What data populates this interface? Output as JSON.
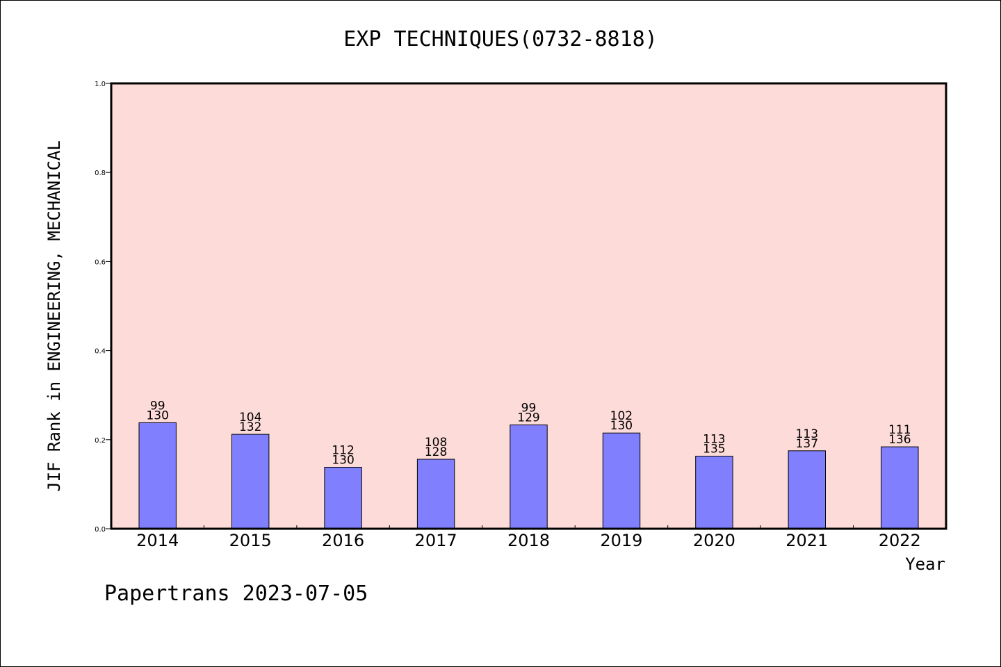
{
  "chart_data": {
    "type": "bar",
    "title": "EXP TECHNIQUES(0732-8818)",
    "xlabel": "Year",
    "ylabel": "JIF Rank in ENGINEERING, MECHANICAL",
    "ylim": [
      0,
      1.0
    ],
    "yticks": [
      "0.0",
      "0.2",
      "0.4",
      "0.6",
      "0.8",
      "1.0"
    ],
    "categories": [
      "2014",
      "2015",
      "2016",
      "2017",
      "2018",
      "2019",
      "2020",
      "2021",
      "2022"
    ],
    "values": [
      0.238,
      0.212,
      0.138,
      0.156,
      0.233,
      0.215,
      0.163,
      0.175,
      0.184
    ],
    "rank": [
      "99",
      "104",
      "112",
      "108",
      "99",
      "102",
      "113",
      "113",
      "111"
    ],
    "total": [
      "130",
      "132",
      "130",
      "128",
      "129",
      "130",
      "135",
      "137",
      "136"
    ],
    "grid": false,
    "legend": "none",
    "colors": {
      "bar": "#8080ff",
      "plot_bg": "#fddbd8",
      "axis": "#000000"
    }
  },
  "footer": {
    "credit": "Papertrans 2023-07-05"
  }
}
